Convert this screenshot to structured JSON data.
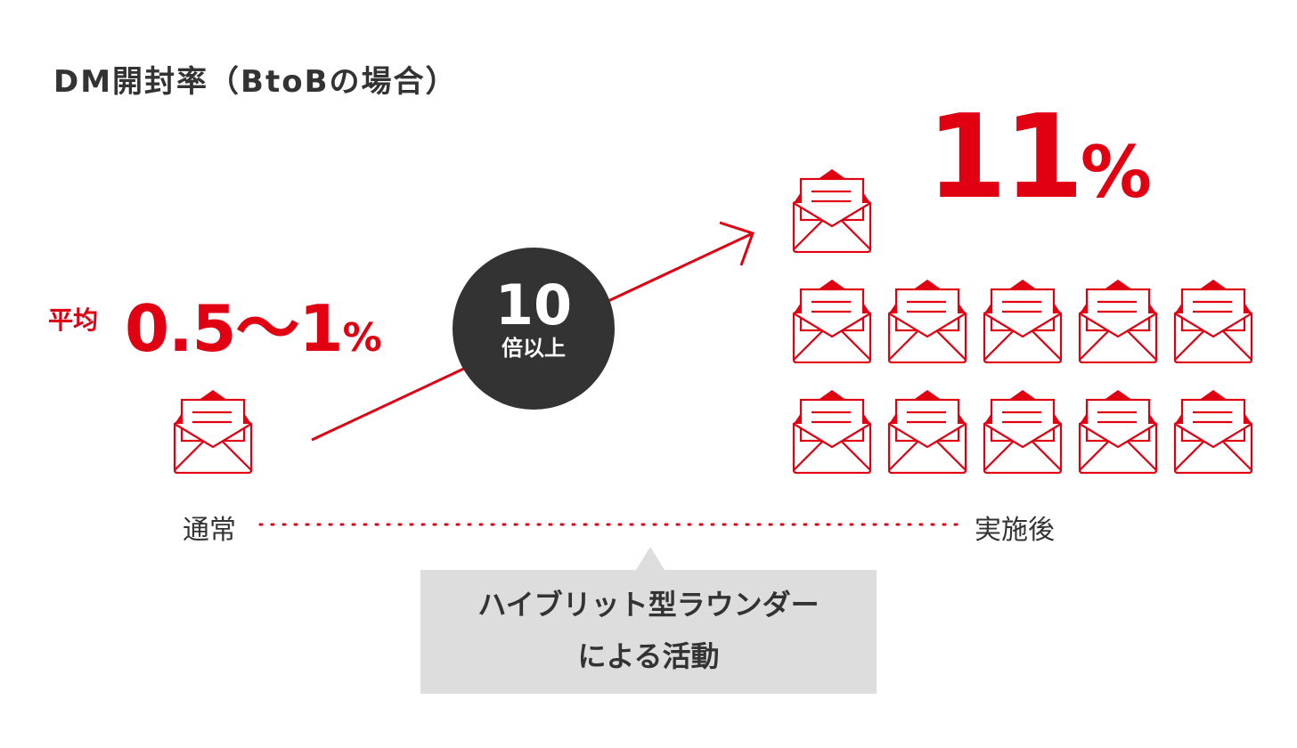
{
  "title": "DM開封率（BtoBの場合）",
  "before": {
    "label": "平均",
    "value": "0.5～1",
    "unit": "%",
    "caption": "通常",
    "envelope_count": 1
  },
  "after": {
    "value": "11",
    "unit": "%",
    "caption": "実施後",
    "envelope_count": 11
  },
  "multiplier": {
    "number": "10",
    "text": "倍以上"
  },
  "callout": {
    "line1": "ハイブリット型ラウンダー",
    "line2": "による活動"
  },
  "colors": {
    "accent": "#e00012",
    "circle": "#333333",
    "callout_bg": "#dddddd",
    "text": "#333333"
  },
  "icons": {
    "envelope": "open-envelope-icon",
    "arrow": "arrow-right-icon"
  }
}
